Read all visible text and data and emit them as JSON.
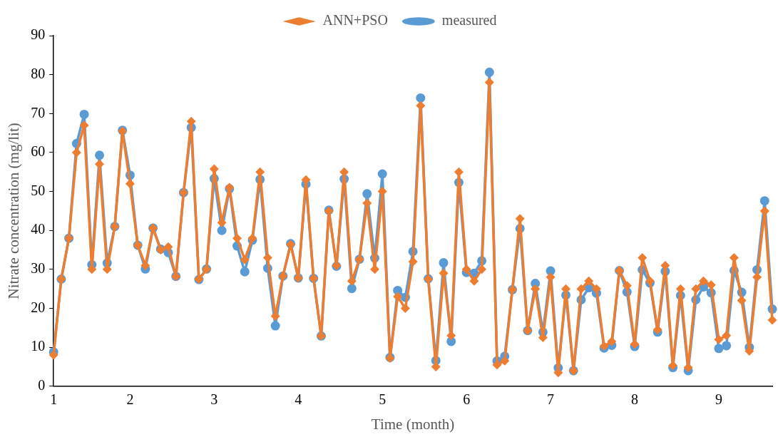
{
  "chart_data": {
    "type": "line",
    "xlabel": "Time (month)",
    "ylabel": "Nitrate concentration (mg/lit)",
    "categories": [
      "1",
      null,
      null,
      null,
      null,
      null,
      null,
      null,
      null,
      null,
      "2",
      null,
      null,
      null,
      null,
      null,
      null,
      null,
      null,
      null,
      null,
      "3",
      null,
      null,
      null,
      null,
      null,
      null,
      null,
      null,
      null,
      null,
      "4",
      null,
      null,
      null,
      null,
      null,
      null,
      null,
      null,
      null,
      null,
      "5",
      null,
      null,
      null,
      null,
      null,
      null,
      null,
      null,
      null,
      null,
      "6",
      null,
      null,
      null,
      null,
      null,
      null,
      null,
      null,
      null,
      null,
      "7",
      null,
      null,
      null,
      null,
      null,
      null,
      null,
      null,
      null,
      null,
      "8",
      null,
      null,
      null,
      null,
      null,
      null,
      null,
      null,
      null,
      null,
      "9",
      null,
      null,
      null,
      null,
      null,
      null,
      null
    ],
    "ylim": [
      0,
      90
    ],
    "yticks": [
      0,
      10,
      20,
      30,
      40,
      50,
      60,
      70,
      80,
      90
    ],
    "grid": false,
    "legend": "top",
    "line_style": "solid",
    "series": [
      {
        "name": "measured",
        "color": "#5b9bd5",
        "marker": "circle",
        "values": [
          8.8,
          27.5,
          38,
          62.3,
          69.8,
          31.2,
          59.3,
          31.6,
          41,
          65.7,
          54.2,
          36.2,
          30.1,
          40.6,
          35.2,
          34.3,
          28.2,
          49.7,
          66.4,
          27.4,
          30.1,
          53.3,
          40,
          50.7,
          36,
          29.4,
          37.5,
          53.1,
          30.3,
          15.5,
          28.3,
          36.6,
          27.8,
          51.9,
          27.7,
          12.9,
          45.2,
          30.8,
          53.2,
          25.1,
          32.6,
          49.4,
          32.9,
          54.5,
          7.4,
          24.6,
          22.8,
          34.6,
          74,
          27.6,
          6.6,
          31.7,
          11.5,
          52.3,
          29.2,
          29,
          32.2,
          80.6,
          6.5,
          7.7,
          24.8,
          40.5,
          14.3,
          26.4,
          13.9,
          29.6,
          4.7,
          23.4,
          4,
          22.2,
          25.3,
          23.9,
          9.8,
          10.5,
          29.7,
          24.2,
          10.2,
          29.9,
          26.5,
          13.9,
          29.5,
          4.8,
          23.3,
          4,
          22.2,
          25.5,
          24,
          9.7,
          10.4,
          29.7,
          24.1,
          10,
          29.9,
          47.6,
          19.8
        ]
      },
      {
        "name": "ANN+PSO",
        "color": "#ed7d31",
        "marker": "diamond",
        "values": [
          8,
          27.5,
          38,
          60,
          67,
          30,
          57,
          30,
          41,
          65.5,
          52,
          36.2,
          31,
          40.6,
          35,
          35.8,
          28.2,
          49.7,
          68,
          27.5,
          30,
          55.8,
          42,
          51,
          38,
          32.5,
          38,
          55,
          33,
          18,
          28.3,
          36.4,
          27.8,
          53,
          27.7,
          12.9,
          45,
          31,
          55,
          27,
          32.6,
          47,
          30,
          50,
          7.2,
          23,
          20,
          32,
          72,
          27.5,
          5,
          29,
          13,
          55,
          30,
          27,
          30,
          78,
          5.5,
          6.5,
          24.8,
          43,
          14.3,
          25,
          12.5,
          28,
          3.5,
          25,
          4,
          25,
          27,
          25,
          10.3,
          11.5,
          29.7,
          25.8,
          10.8,
          33,
          27,
          14.5,
          31,
          5.3,
          25,
          4.8,
          25,
          27,
          26,
          12,
          13,
          33,
          22,
          9,
          28,
          45,
          17
        ]
      }
    ]
  }
}
